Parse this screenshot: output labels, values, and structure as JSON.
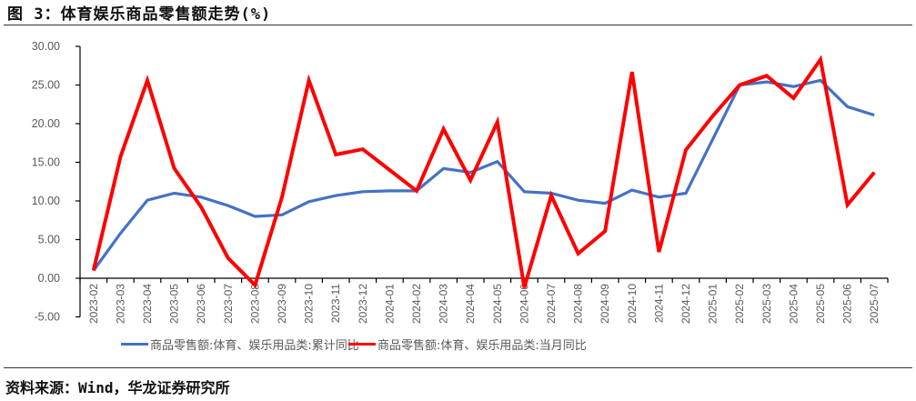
{
  "header": {
    "title": "图 3：体育娱乐商品零售额走势(%)"
  },
  "footer": {
    "source": "资料来源：Wind，华龙证券研究所"
  },
  "colors": {
    "cumulative": "#4472C4",
    "monthly": "#FF0000",
    "axis": "#000000",
    "tick_text": "#595959"
  },
  "legend": {
    "items": [
      {
        "label": "商品零售额:体育、娱乐用品类:累计同比",
        "color": "#4472C4"
      },
      {
        "label": "商品零售额:体育、娱乐用品类:当月同比",
        "color": "#FF0000"
      }
    ]
  },
  "chart_data": {
    "type": "line",
    "title": "图 3：体育娱乐商品零售额走势(%)",
    "xlabel": "",
    "ylabel": "",
    "ylim": [
      -5,
      30
    ],
    "yticks": [
      "30.00",
      "25.00",
      "20.00",
      "15.00",
      "10.00",
      "5.00",
      "0.00",
      "-5.00"
    ],
    "grid": false,
    "legend_position": "bottom",
    "categories": [
      "2023-02",
      "2023-03",
      "2023-04",
      "2023-05",
      "2023-06",
      "2023-07",
      "2023-08",
      "2023-09",
      "2023-10",
      "2023-11",
      "2023-12",
      "2024-01",
      "2024-02",
      "2024-03",
      "2024-04",
      "2024-05",
      "2024-06",
      "2024-07",
      "2024-08",
      "2024-09",
      "2024-10",
      "2024-11",
      "2024-12",
      "2025-01",
      "2025-02",
      "2025-03",
      "2025-04",
      "2025-05",
      "2025-06",
      "2025-07"
    ],
    "series": [
      {
        "name": "商品零售额:体育、娱乐用品类:累计同比",
        "values": [
          1.0,
          5.8,
          10.1,
          11.0,
          10.5,
          9.4,
          8.0,
          8.2,
          9.9,
          10.7,
          11.2,
          11.3,
          11.3,
          14.2,
          13.7,
          15.1,
          11.2,
          11.0,
          10.1,
          9.7,
          11.4,
          10.5,
          11.0,
          18.0,
          25.0,
          25.4,
          24.8,
          25.6,
          22.2,
          21.1
        ]
      },
      {
        "name": "商品零售额:体育、娱乐用品类:当月同比",
        "values": [
          1.0,
          15.7,
          25.6,
          14.2,
          9.2,
          2.6,
          -0.9,
          10.5,
          25.6,
          16.0,
          16.7,
          14.0,
          11.3,
          19.3,
          12.7,
          20.2,
          -1.2,
          10.7,
          3.2,
          6.1,
          26.7,
          3.4,
          16.6,
          21.0,
          25.0,
          26.2,
          23.3,
          28.3,
          9.5,
          13.7
        ]
      }
    ]
  }
}
